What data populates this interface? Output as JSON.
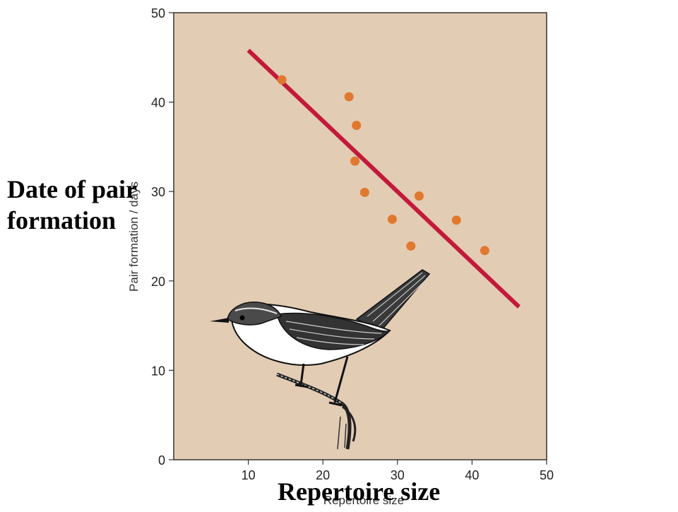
{
  "overlay": {
    "ylabel_big": "Date of pair formation",
    "xlabel_big": "Repertoire size"
  },
  "chart_data": {
    "type": "scatter",
    "title": "",
    "xlabel": "Repertoire size",
    "ylabel": "Pair formation / days",
    "xlim": [
      0,
      50
    ],
    "ylim": [
      0,
      50
    ],
    "xticks": [
      10,
      20,
      30,
      40,
      50
    ],
    "yticks": [
      0,
      10,
      20,
      30,
      40,
      50
    ],
    "grid": false,
    "background": "#e2ccb4",
    "point_color": "#e0782f",
    "line_color": "#c3193a",
    "points": [
      {
        "x": 14.5,
        "y": 42.5
      },
      {
        "x": 23.5,
        "y": 40.6
      },
      {
        "x": 24.5,
        "y": 37.4
      },
      {
        "x": 24.3,
        "y": 33.4
      },
      {
        "x": 25.6,
        "y": 29.9
      },
      {
        "x": 29.3,
        "y": 26.9
      },
      {
        "x": 31.8,
        "y": 23.9
      },
      {
        "x": 32.9,
        "y": 29.5
      },
      {
        "x": 37.9,
        "y": 26.8
      },
      {
        "x": 41.7,
        "y": 23.4
      }
    ],
    "trend_line": [
      {
        "x": 10,
        "y": 45.8
      },
      {
        "x": 46.3,
        "y": 17.1
      }
    ],
    "illustration": "bird-illustration"
  }
}
